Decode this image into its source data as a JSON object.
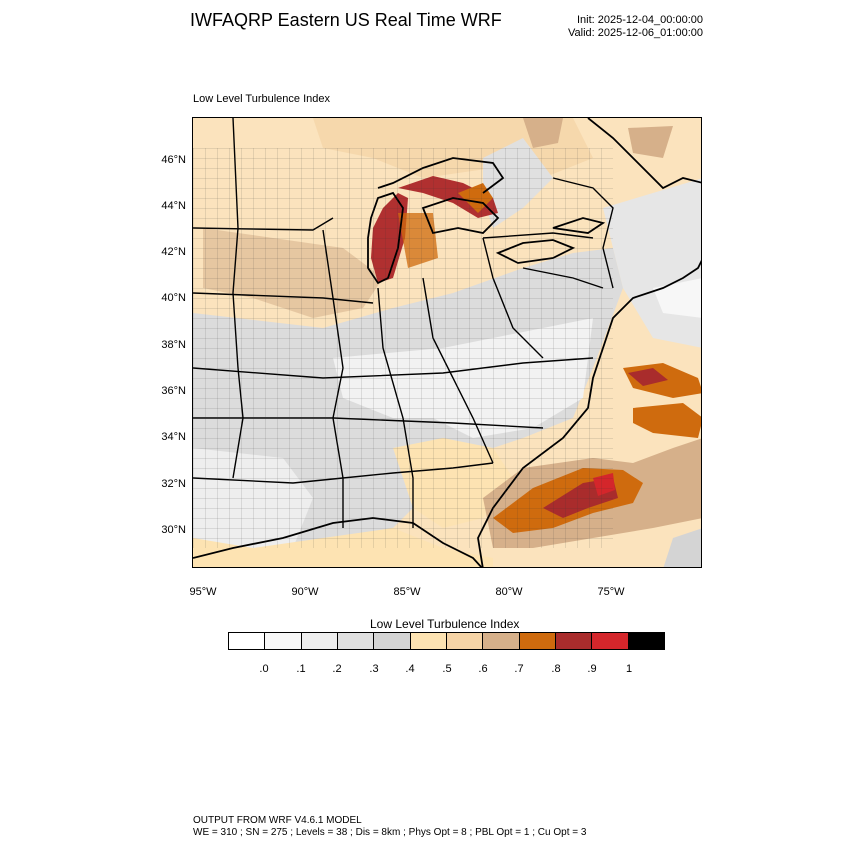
{
  "header": {
    "title": "IWFAQRP Eastern US Real Time WRF",
    "init": "Init: 2025-12-04_00:00:00",
    "valid": "Valid: 2025-12-06_01:00:00"
  },
  "map": {
    "subtitle": "Low Level Turbulence Index",
    "lat_labels": [
      "46°N",
      "44°N",
      "42°N",
      "40°N",
      "38°N",
      "36°N",
      "34°N",
      "32°N",
      "30°N"
    ],
    "lon_labels": [
      "95°W",
      "90°W",
      "85°W",
      "80°W",
      "75°W"
    ]
  },
  "colorbar": {
    "title": "Low Level Turbulence Index",
    "labels": [
      ".0",
      ".1",
      ".2",
      ".3",
      ".4",
      ".5",
      ".6",
      ".7",
      ".8",
      ".9",
      "1"
    ],
    "colors": [
      "#ffffff",
      "#f7f7f7",
      "#eeeeee",
      "#e0e0e0",
      "#d4d4d4",
      "#fde3b2",
      "#f6d4a6",
      "#d6b08a",
      "#cf6b0e",
      "#a92c2c",
      "#d4262b",
      "#000000"
    ]
  },
  "footer": {
    "model": "OUTPUT FROM WRF V4.6.1 MODEL",
    "config": "WE = 310 ; SN = 275 ; Levels = 38 ; Dis = 8km ; Phys Opt = 8 ; PBL Opt = 1 ; Cu Opt = 3"
  }
}
